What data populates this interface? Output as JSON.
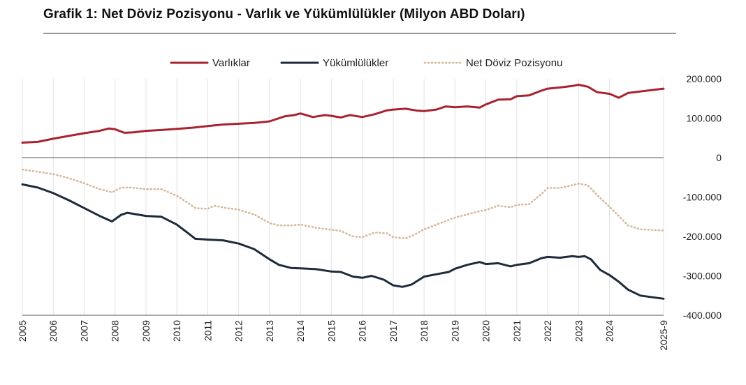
{
  "chart_data": {
    "type": "line",
    "title": "Grafik 1: Net Döviz Pozisyonu - Varlık ve Yükümlülükler (Milyon ABD Doları)",
    "xlabel": "",
    "ylabel": "",
    "ylim": [
      -400000,
      200000
    ],
    "yticks": [
      200000,
      100000,
      0,
      -100000,
      -200000,
      -300000,
      -400000
    ],
    "ytick_labels": [
      "200.000",
      "100.000",
      "0",
      "-100.000",
      "-200.000",
      "-300.000",
      "-400.000"
    ],
    "xlim": [
      2005.0,
      2025.75
    ],
    "xticks": [
      2005,
      2006,
      2007,
      2008,
      2009,
      2010,
      2011,
      2012,
      2013,
      2014,
      2015,
      2016,
      2017,
      2018,
      2019,
      2020,
      2021,
      2022,
      2023,
      2024,
      2025.75
    ],
    "xtick_labels": [
      "2005",
      "2006",
      "2007",
      "2008",
      "2009",
      "2010",
      "2011",
      "2012",
      "2013",
      "2014",
      "2015",
      "2016",
      "2017",
      "2018",
      "2019",
      "2020",
      "2021",
      "2022",
      "2023",
      "2024",
      "2025-9"
    ],
    "grid": "vertical",
    "legend": "top-center",
    "series": [
      {
        "name": "Varlıklar",
        "color": "#a8232f",
        "style": "solid",
        "points": [
          [
            2005.0,
            38000
          ],
          [
            2005.5,
            40000
          ],
          [
            2006.0,
            48000
          ],
          [
            2006.5,
            55000
          ],
          [
            2007.0,
            62000
          ],
          [
            2007.5,
            68000
          ],
          [
            2007.8,
            74000
          ],
          [
            2008.0,
            72000
          ],
          [
            2008.3,
            63000
          ],
          [
            2008.6,
            64000
          ],
          [
            2009.0,
            68000
          ],
          [
            2009.5,
            70000
          ],
          [
            2010.0,
            73000
          ],
          [
            2010.5,
            76000
          ],
          [
            2011.0,
            80000
          ],
          [
            2011.5,
            84000
          ],
          [
            2012.0,
            86000
          ],
          [
            2012.5,
            88000
          ],
          [
            2013.0,
            92000
          ],
          [
            2013.5,
            105000
          ],
          [
            2013.8,
            108000
          ],
          [
            2014.0,
            112000
          ],
          [
            2014.4,
            103000
          ],
          [
            2014.8,
            108000
          ],
          [
            2015.0,
            106000
          ],
          [
            2015.3,
            102000
          ],
          [
            2015.6,
            108000
          ],
          [
            2016.0,
            103000
          ],
          [
            2016.4,
            110000
          ],
          [
            2016.8,
            120000
          ],
          [
            2017.0,
            122000
          ],
          [
            2017.4,
            124000
          ],
          [
            2017.8,
            119000
          ],
          [
            2018.0,
            118000
          ],
          [
            2018.4,
            122000
          ],
          [
            2018.7,
            130000
          ],
          [
            2019.0,
            128000
          ],
          [
            2019.4,
            130000
          ],
          [
            2019.8,
            127000
          ],
          [
            2020.0,
            135000
          ],
          [
            2020.4,
            147000
          ],
          [
            2020.8,
            148000
          ],
          [
            2021.0,
            156000
          ],
          [
            2021.4,
            158000
          ],
          [
            2021.8,
            170000
          ],
          [
            2022.0,
            175000
          ],
          [
            2022.4,
            178000
          ],
          [
            2022.8,
            182000
          ],
          [
            2023.0,
            185000
          ],
          [
            2023.3,
            180000
          ],
          [
            2023.6,
            166000
          ],
          [
            2024.0,
            162000
          ],
          [
            2024.3,
            152000
          ],
          [
            2024.6,
            164000
          ],
          [
            2025.0,
            168000
          ],
          [
            2025.75,
            175000
          ]
        ]
      },
      {
        "name": "Yükümlülükler",
        "color": "#1e2b3a",
        "style": "solid",
        "points": [
          [
            2005.0,
            -68000
          ],
          [
            2005.5,
            -76000
          ],
          [
            2006.0,
            -90000
          ],
          [
            2006.5,
            -108000
          ],
          [
            2007.0,
            -128000
          ],
          [
            2007.5,
            -148000
          ],
          [
            2007.9,
            -162000
          ],
          [
            2008.2,
            -145000
          ],
          [
            2008.4,
            -140000
          ],
          [
            2009.0,
            -148000
          ],
          [
            2009.5,
            -150000
          ],
          [
            2010.0,
            -170000
          ],
          [
            2010.3,
            -188000
          ],
          [
            2010.6,
            -206000
          ],
          [
            2011.0,
            -208000
          ],
          [
            2011.5,
            -210000
          ],
          [
            2012.0,
            -218000
          ],
          [
            2012.5,
            -232000
          ],
          [
            2013.0,
            -258000
          ],
          [
            2013.3,
            -272000
          ],
          [
            2013.7,
            -280000
          ],
          [
            2014.0,
            -281000
          ],
          [
            2014.5,
            -283000
          ],
          [
            2015.0,
            -289000
          ],
          [
            2015.3,
            -290000
          ],
          [
            2015.7,
            -302000
          ],
          [
            2016.0,
            -305000
          ],
          [
            2016.3,
            -300000
          ],
          [
            2016.7,
            -310000
          ],
          [
            2017.0,
            -324000
          ],
          [
            2017.3,
            -328000
          ],
          [
            2017.6,
            -322000
          ],
          [
            2018.0,
            -302000
          ],
          [
            2018.4,
            -296000
          ],
          [
            2018.8,
            -290000
          ],
          [
            2019.0,
            -282000
          ],
          [
            2019.4,
            -272000
          ],
          [
            2019.8,
            -265000
          ],
          [
            2020.0,
            -270000
          ],
          [
            2020.4,
            -268000
          ],
          [
            2020.8,
            -276000
          ],
          [
            2021.0,
            -272000
          ],
          [
            2021.4,
            -268000
          ],
          [
            2021.8,
            -255000
          ],
          [
            2022.0,
            -252000
          ],
          [
            2022.4,
            -254000
          ],
          [
            2022.8,
            -250000
          ],
          [
            2023.0,
            -252000
          ],
          [
            2023.2,
            -250000
          ],
          [
            2023.4,
            -258000
          ],
          [
            2023.7,
            -285000
          ],
          [
            2024.0,
            -298000
          ],
          [
            2024.3,
            -315000
          ],
          [
            2024.6,
            -335000
          ],
          [
            2025.0,
            -350000
          ],
          [
            2025.75,
            -358000
          ]
        ]
      },
      {
        "name": "Net Döviz Pozisyonu",
        "color": "#d4b899",
        "style": "dotted",
        "points": [
          [
            2005.0,
            -30000
          ],
          [
            2005.5,
            -36000
          ],
          [
            2006.0,
            -42000
          ],
          [
            2006.5,
            -52000
          ],
          [
            2007.0,
            -65000
          ],
          [
            2007.5,
            -80000
          ],
          [
            2007.9,
            -88000
          ],
          [
            2008.2,
            -76000
          ],
          [
            2008.5,
            -76000
          ],
          [
            2009.0,
            -80000
          ],
          [
            2009.5,
            -80000
          ],
          [
            2010.0,
            -97000
          ],
          [
            2010.3,
            -112000
          ],
          [
            2010.6,
            -128000
          ],
          [
            2011.0,
            -130000
          ],
          [
            2011.2,
            -122000
          ],
          [
            2011.6,
            -128000
          ],
          [
            2012.0,
            -132000
          ],
          [
            2012.5,
            -144000
          ],
          [
            2013.0,
            -166000
          ],
          [
            2013.3,
            -172000
          ],
          [
            2013.7,
            -172000
          ],
          [
            2014.0,
            -170000
          ],
          [
            2014.5,
            -178000
          ],
          [
            2015.0,
            -183000
          ],
          [
            2015.3,
            -186000
          ],
          [
            2015.7,
            -200000
          ],
          [
            2016.0,
            -202000
          ],
          [
            2016.4,
            -190000
          ],
          [
            2016.8,
            -192000
          ],
          [
            2017.0,
            -202000
          ],
          [
            2017.4,
            -205000
          ],
          [
            2017.7,
            -195000
          ],
          [
            2018.0,
            -182000
          ],
          [
            2018.4,
            -170000
          ],
          [
            2018.8,
            -158000
          ],
          [
            2019.0,
            -152000
          ],
          [
            2019.4,
            -144000
          ],
          [
            2019.8,
            -136000
          ],
          [
            2020.0,
            -133000
          ],
          [
            2020.4,
            -122000
          ],
          [
            2020.8,
            -126000
          ],
          [
            2021.0,
            -120000
          ],
          [
            2021.4,
            -118000
          ],
          [
            2021.8,
            -92000
          ],
          [
            2022.0,
            -77000
          ],
          [
            2022.4,
            -77000
          ],
          [
            2022.8,
            -70000
          ],
          [
            2023.0,
            -66000
          ],
          [
            2023.3,
            -70000
          ],
          [
            2023.6,
            -95000
          ],
          [
            2024.0,
            -125000
          ],
          [
            2024.3,
            -148000
          ],
          [
            2024.6,
            -172000
          ],
          [
            2025.0,
            -182000
          ],
          [
            2025.75,
            -185000
          ]
        ]
      }
    ]
  }
}
